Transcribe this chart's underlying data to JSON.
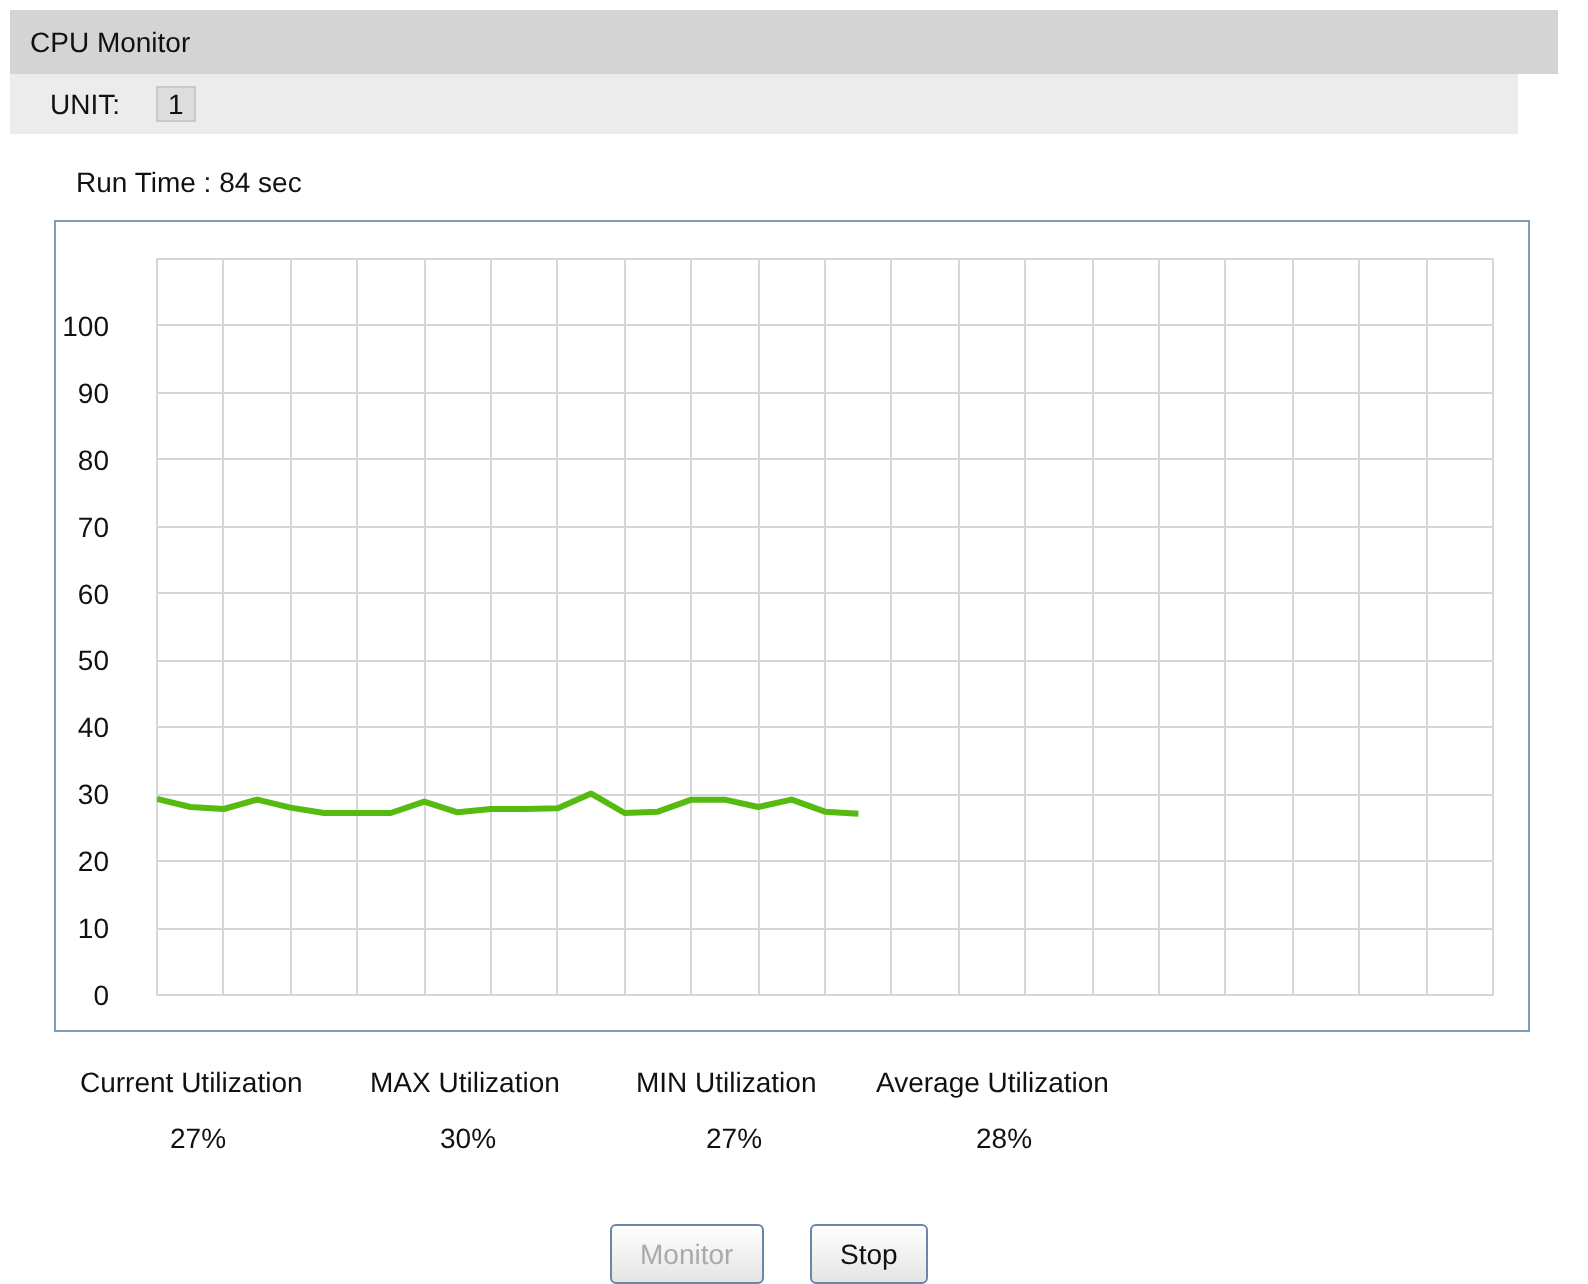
{
  "chart_data": {
    "type": "line",
    "title": "CPU Monitor",
    "subtitle": "Run Time : 84 sec",
    "categories": [
      null,
      null,
      null,
      null,
      null,
      null,
      null,
      null,
      null,
      null,
      null,
      null,
      null,
      null,
      null,
      null,
      null,
      null,
      null,
      null,
      null,
      null,
      null,
      null,
      null,
      null,
      null,
      null,
      null,
      null,
      null,
      null,
      null,
      null,
      null,
      null,
      null,
      null,
      null,
      null,
      null
    ],
    "series": [
      {
        "color": "#55bb11",
        "values": [
          29.3,
          28.1,
          27.8,
          29.2,
          28.0,
          27.2,
          27.2,
          27.2,
          28.9,
          27.3,
          27.8,
          27.8,
          27.9,
          30.1,
          27.2,
          27.4,
          29.2,
          29.2,
          28.1,
          29.2,
          27.4,
          27.1,
          null,
          null,
          null,
          null,
          null,
          null,
          null,
          null,
          null,
          null,
          null,
          null,
          null,
          null,
          null,
          null,
          null,
          null,
          null
        ]
      }
    ],
    "ylim": [
      0,
      110
    ],
    "yticks": [
      0,
      10,
      20,
      30,
      40,
      50,
      60,
      70,
      80,
      90,
      100,
      {
        "value": 110,
        "label": null
      }
    ],
    "grid": true,
    "tick_labels": "y",
    "marker": "none",
    "annotations": [
      "UNIT:",
      "1",
      "Current Utilization",
      "MAX Utilization",
      "MIN Utilization",
      "Average Utilization",
      "27%",
      "30%",
      "27%",
      "28%",
      "Monitor",
      "Stop"
    ]
  }
}
